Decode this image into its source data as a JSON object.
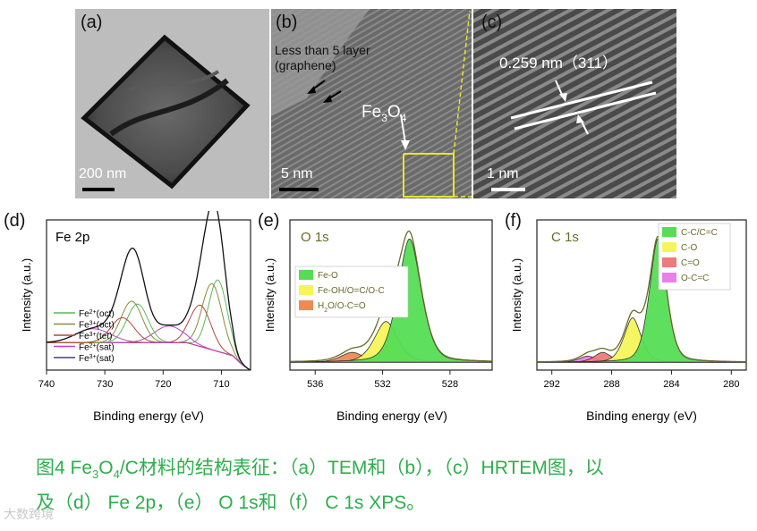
{
  "panels": {
    "a": {
      "label": "(a)",
      "scale": "200 nm"
    },
    "b": {
      "label": "(b)",
      "scale": "5 nm",
      "note_line1": "Less than 5 layer",
      "note_line2": "(graphene)",
      "fe3o4_main": "Fe",
      "fe3o4_sub": "3",
      "fe3o4_tail": "O",
      "fe3o4_sub2": "4"
    },
    "c": {
      "label": "(c)",
      "scale": "1 nm",
      "lattice": "0.259 nm（311）"
    }
  },
  "chart_data": [
    {
      "type": "line",
      "panel": "(d)",
      "title": "Fe 2p",
      "xlabel": "Binding energy (eV)",
      "ylabel": "Intensity (a.u.)",
      "xlim": [
        740,
        705
      ],
      "x_ticks": [
        "740",
        "730",
        "720",
        "710"
      ],
      "legend": [
        {
          "main": "Fe",
          "sup": "2+",
          "tail": "(oct)",
          "color": "#5cb85c"
        },
        {
          "main": "Fe",
          "sup": "3+",
          "tail": "(oct)",
          "color": "#8a8a3a"
        },
        {
          "main": "Fe",
          "sup": "3+",
          "tail": "(tet)",
          "color": "#b0483a"
        },
        {
          "main": "Fe",
          "sup": "2+",
          "tail": "(sat)",
          "color": "#c040c8"
        },
        {
          "main": "Fe",
          "sup": "3+",
          "tail": "(sat)",
          "color": "#4a3a8a"
        }
      ]
    },
    {
      "type": "area",
      "panel": "(e)",
      "title": "O 1s",
      "xlabel": "Binding energy (eV)",
      "ylabel": "Intensity (a.u.)",
      "xlim": [
        537.5,
        525.5
      ],
      "x_ticks": [
        "536",
        "532",
        "528"
      ],
      "legend": [
        {
          "label": "Fe-O",
          "color": "#55dd55"
        },
        {
          "label": "Fe-OH/O=C/O-C",
          "color": "#f5f55a"
        },
        {
          "main": "H",
          "sub": "2",
          "tail": "O/O-C=O",
          "color": "#ee8a55"
        }
      ],
      "peaks": [
        {
          "name": "Fe-O",
          "center": 530.4,
          "height": 1.0,
          "color": "#55dd55"
        },
        {
          "name": "Fe-OH/O=C/O-C",
          "center": 531.8,
          "height": 0.33,
          "color": "#f5f55a"
        },
        {
          "name": "H2O/O-C=O",
          "center": 533.8,
          "height": 0.08,
          "color": "#ee8a55"
        }
      ]
    },
    {
      "type": "area",
      "panel": "(f)",
      "title": "C 1s",
      "xlabel": "Binding energy (eV)",
      "ylabel": "Intensity (a.u.)",
      "xlim": [
        293,
        279
      ],
      "x_ticks": [
        "292",
        "288",
        "284",
        "280"
      ],
      "legend": [
        {
          "label": "C-C/C=C",
          "color": "#55dd55"
        },
        {
          "label": "C-O",
          "color": "#f5f55a"
        },
        {
          "label": "C=O",
          "color": "#ee7a7a"
        },
        {
          "label": "O-C=C",
          "color": "#e880e8"
        }
      ],
      "peaks": [
        {
          "name": "C-C/C=C",
          "center": 284.9,
          "height": 1.0,
          "color": "#55dd55"
        },
        {
          "name": "C-O",
          "center": 286.6,
          "height": 0.36,
          "color": "#f5f55a"
        },
        {
          "name": "C=O",
          "center": 288.6,
          "height": 0.08,
          "color": "#ee7a7a"
        },
        {
          "name": "O-C=C",
          "center": 289.6,
          "height": 0.05,
          "color": "#e880e8"
        }
      ]
    }
  ],
  "caption": {
    "p1": "图4 Fe",
    "s1": "3",
    "p2": "O",
    "s2": "4",
    "p3": "/C材料的结构表征：（a）TEM和（b），（c）HRTEM图，以",
    "line2": "及（d） Fe 2p，（e） O 1s和（f） C 1s XPS。"
  },
  "watermark": "大数跨境",
  "colors": {
    "caption": "#2eae4d",
    "fe3o4_box": "#e6e62e"
  }
}
